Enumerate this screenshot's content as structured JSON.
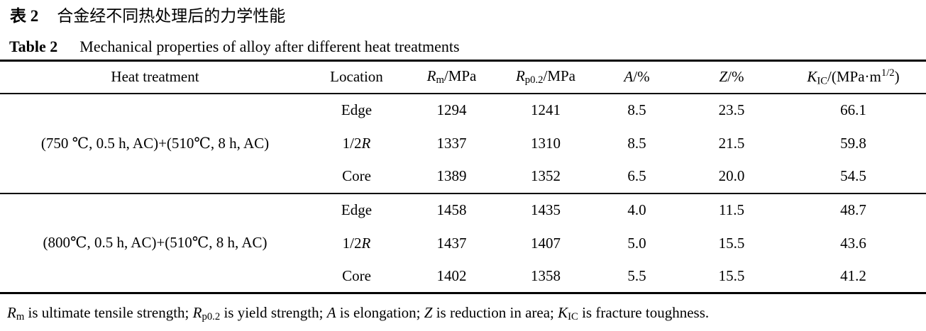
{
  "titles": {
    "zh": {
      "label": "表 2",
      "text": "合金经不同热处理后的力学性能"
    },
    "en": {
      "label": "Table 2",
      "text": "Mechanical properties of alloy after different heat treatments"
    }
  },
  "table": {
    "headers": {
      "treatment": [
        {
          "t": "Heat treatment"
        }
      ],
      "location": [
        {
          "t": "Location"
        }
      ],
      "rm": [
        {
          "t": "R",
          "i": true
        },
        {
          "t": "m",
          "sub": true
        },
        {
          "t": "/MPa"
        }
      ],
      "rp02": [
        {
          "t": "R",
          "i": true
        },
        {
          "t": "p0.2",
          "sub": true
        },
        {
          "t": "/MPa"
        }
      ],
      "a": [
        {
          "t": "A",
          "i": true
        },
        {
          "t": "/%"
        }
      ],
      "z": [
        {
          "t": "Z",
          "i": true
        },
        {
          "t": "/%"
        }
      ],
      "kic": [
        {
          "t": "K",
          "i": true
        },
        {
          "t": "IC",
          "sub": true
        },
        {
          "t": "/(MPa·m"
        },
        {
          "t": "1/2",
          "sup": true
        },
        {
          "t": ")"
        }
      ]
    },
    "groups": [
      {
        "treatment": "(750 ℃, 0.5 h, AC)+(510℃, 8 h, AC)",
        "rows": [
          {
            "location": [
              {
                "t": "Edge"
              }
            ],
            "rm": "1294",
            "rp02": "1241",
            "a": "8.5",
            "z": "23.5",
            "kic": "66.1"
          },
          {
            "location": [
              {
                "t": "1/2"
              },
              {
                "t": "R",
                "i": true
              }
            ],
            "rm": "1337",
            "rp02": "1310",
            "a": "8.5",
            "z": "21.5",
            "kic": "59.8"
          },
          {
            "location": [
              {
                "t": "Core"
              }
            ],
            "rm": "1389",
            "rp02": "1352",
            "a": "6.5",
            "z": "20.0",
            "kic": "54.5"
          }
        ]
      },
      {
        "treatment": "(800℃, 0.5 h, AC)+(510℃, 8 h, AC)",
        "rows": [
          {
            "location": [
              {
                "t": "Edge"
              }
            ],
            "rm": "1458",
            "rp02": "1435",
            "a": "4.0",
            "z": "11.5",
            "kic": "48.7"
          },
          {
            "location": [
              {
                "t": "1/2"
              },
              {
                "t": "R",
                "i": true
              }
            ],
            "rm": "1437",
            "rp02": "1407",
            "a": "5.0",
            "z": "15.5",
            "kic": "43.6"
          },
          {
            "location": [
              {
                "t": "Core"
              }
            ],
            "rm": "1402",
            "rp02": "1358",
            "a": "5.5",
            "z": "15.5",
            "kic": "41.2"
          }
        ]
      }
    ],
    "footnote": [
      {
        "t": "R",
        "i": true
      },
      {
        "t": "m",
        "sub": true
      },
      {
        "t": " is ultimate tensile strength; "
      },
      {
        "t": "R",
        "i": true
      },
      {
        "t": "p0.2",
        "sub": true
      },
      {
        "t": " is yield strength; "
      },
      {
        "t": "A",
        "i": true
      },
      {
        "t": " is elongation; "
      },
      {
        "t": "Z",
        "i": true
      },
      {
        "t": " is reduction in area; "
      },
      {
        "t": "K",
        "i": true
      },
      {
        "t": "IC",
        "sub": true
      },
      {
        "t": " is fracture toughness."
      }
    ]
  }
}
